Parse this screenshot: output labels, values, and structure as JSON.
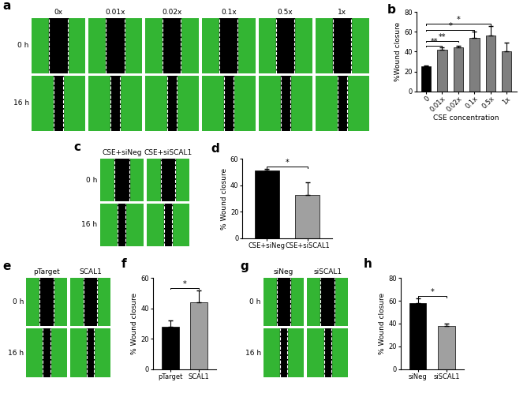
{
  "image_panels": [
    {
      "panel_label": "a",
      "columns": [
        "0x",
        "0.01x",
        "0.02x",
        "0.1x",
        "0.5x",
        "1x"
      ],
      "rows": [
        "0 h",
        "16 h"
      ]
    },
    {
      "panel_label": "c",
      "columns": [
        "CSE+siNeg",
        "CSE+siSCAL1"
      ],
      "rows": [
        "0 h",
        "16 h"
      ]
    },
    {
      "panel_label": "e",
      "columns": [
        "pTarget",
        "SCAL1"
      ],
      "rows": [
        "0 h",
        "16 h"
      ]
    },
    {
      "panel_label": "g",
      "columns": [
        "siNeg",
        "siSCAL1"
      ],
      "rows": [
        "0 h",
        "16 h"
      ]
    }
  ],
  "chart_data": [
    {
      "panel_label": "b",
      "type": "bar",
      "y_label": "%Wound closure",
      "x_label": "CSE concentration",
      "categories": [
        "0",
        "0.01x",
        "0.02x",
        "0.1x",
        "0.5x",
        "1x"
      ],
      "values": [
        25,
        42,
        44,
        54,
        56,
        40
      ],
      "error": [
        1,
        2,
        1.5,
        6,
        10,
        9
      ],
      "colors": [
        "#000000",
        "#7f7f7f",
        "#7f7f7f",
        "#7f7f7f",
        "#7f7f7f",
        "#7f7f7f"
      ],
      "ylim": [
        0,
        80
      ],
      "yticks": [
        0,
        20,
        40,
        60,
        80
      ],
      "significance": [
        {
          "from": "0",
          "to": "0.01x",
          "label": "**"
        },
        {
          "from": "0",
          "to": "0.02x",
          "label": "**"
        },
        {
          "from": "0",
          "to": "0.1x",
          "label": "*"
        },
        {
          "from": "0",
          "to": "0.5x",
          "label": "*"
        }
      ]
    },
    {
      "panel_label": "d",
      "type": "bar",
      "y_label": "% Wound closure",
      "categories": [
        "CSE+siNeg",
        "CSE+siSCAL1"
      ],
      "values": [
        51,
        32.5
      ],
      "error": [
        1.5,
        10
      ],
      "colors": [
        "#000000",
        "#a0a0a0"
      ],
      "ylim": [
        0,
        60
      ],
      "yticks": [
        0,
        20,
        40,
        60
      ],
      "significance": [
        {
          "from": "CSE+siNeg",
          "to": "CSE+siSCAL1",
          "label": "*"
        }
      ]
    },
    {
      "panel_label": "f",
      "type": "bar",
      "y_label": "% Wound closure",
      "categories": [
        "pTarget",
        "SCAL1"
      ],
      "values": [
        28,
        44
      ],
      "error": [
        4,
        8
      ],
      "colors": [
        "#000000",
        "#a0a0a0"
      ],
      "ylim": [
        0,
        60
      ],
      "yticks": [
        0,
        20,
        40,
        60
      ],
      "significance": [
        {
          "from": "pTarget",
          "to": "SCAL1",
          "label": "*"
        }
      ]
    },
    {
      "panel_label": "h",
      "type": "bar",
      "y_label": "% Wound closure",
      "categories": [
        "siNeg",
        "siSCAL1"
      ],
      "values": [
        58,
        38
      ],
      "error": [
        4,
        2
      ],
      "colors": [
        "#000000",
        "#a0a0a0"
      ],
      "ylim": [
        0,
        80
      ],
      "yticks": [
        0,
        20,
        40,
        60,
        80
      ],
      "significance": [
        {
          "from": "siNeg",
          "to": "siSCAL1",
          "label": "*"
        }
      ]
    }
  ]
}
